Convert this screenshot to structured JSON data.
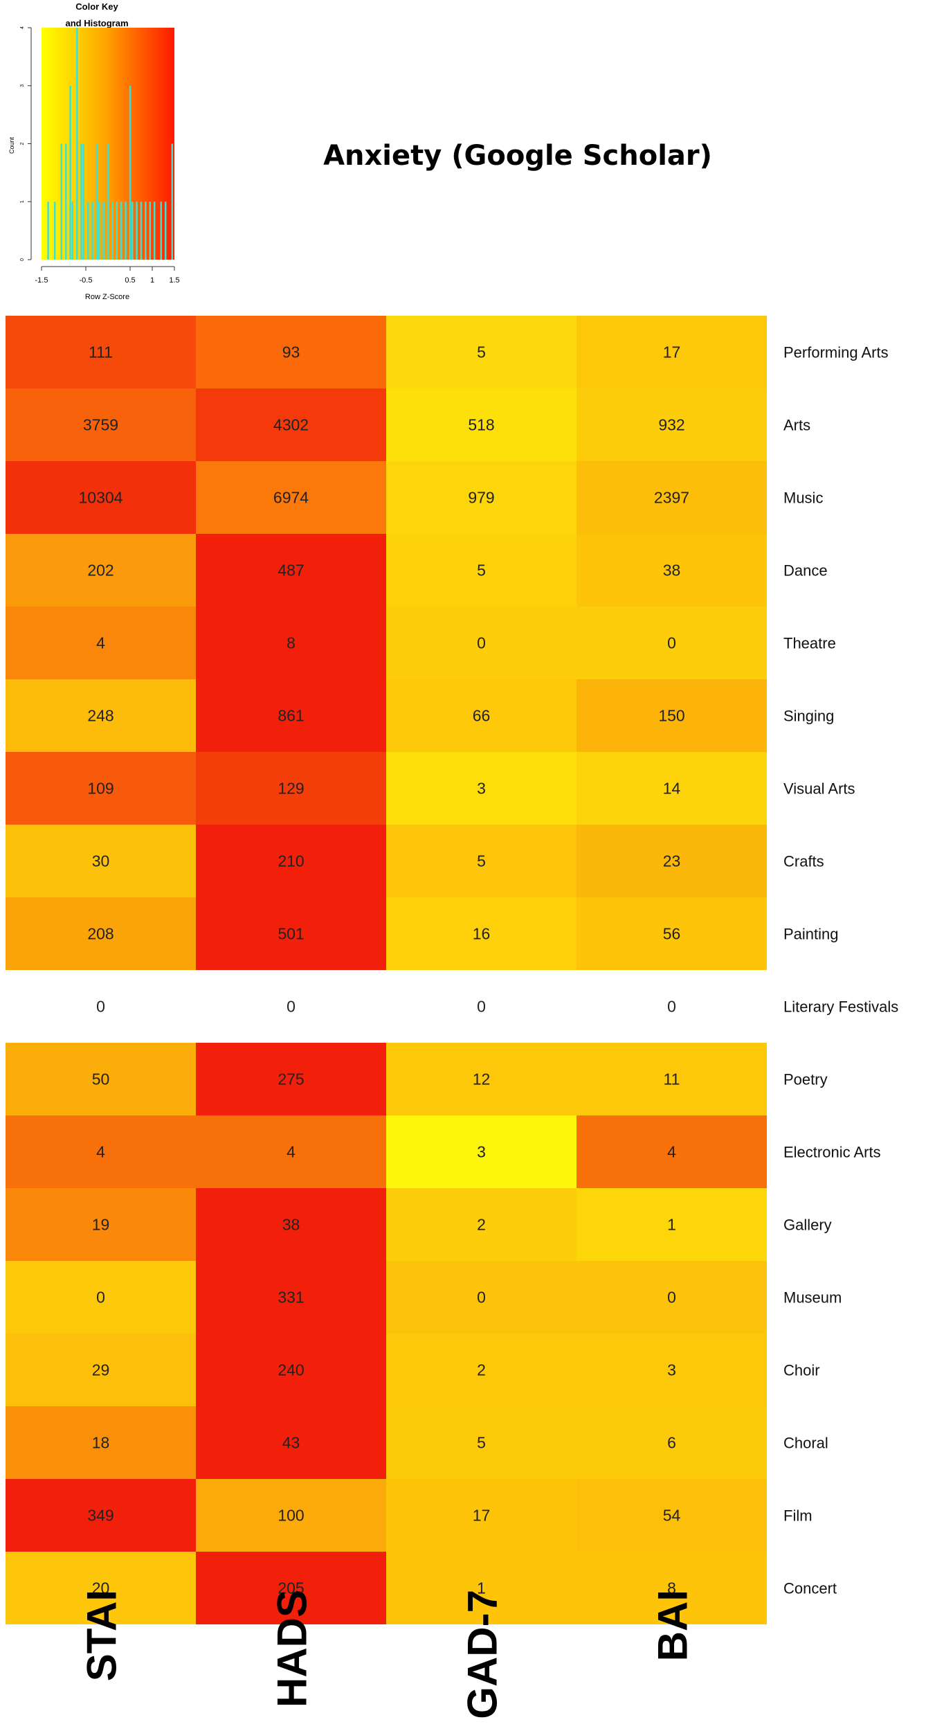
{
  "chart_data": {
    "type": "heatmap",
    "title": "Anxiety (Google Scholar)",
    "columns": [
      "STAI",
      "HADS",
      "GAD-7",
      "BAI"
    ],
    "rows": [
      {
        "label": "Performing Arts",
        "values": [
          111,
          93,
          5,
          17
        ],
        "colors": [
          "#f54a0a",
          "#fa6a0a",
          "#fdd80a",
          "#fdc80a"
        ]
      },
      {
        "label": "Arts",
        "values": [
          3759,
          4302,
          518,
          932
        ],
        "colors": [
          "#f8620a",
          "#f43a0a",
          "#fde00a",
          "#fdcc0a"
        ]
      },
      {
        "label": "Music",
        "values": [
          10304,
          6974,
          979,
          2397
        ],
        "colors": [
          "#f2300a",
          "#fb780a",
          "#fdd60a",
          "#fdbe0a"
        ]
      },
      {
        "label": "Dance",
        "values": [
          202,
          487,
          5,
          38
        ],
        "colors": [
          "#fb9a0a",
          "#f2200a",
          "#fdd20a",
          "#fdc40a"
        ]
      },
      {
        "label": "Theatre",
        "values": [
          4,
          8,
          0,
          0
        ],
        "colors": [
          "#fa860a",
          "#f2200a",
          "#fdcc0a",
          "#fdcc0a"
        ]
      },
      {
        "label": "Singing",
        "values": [
          248,
          861,
          66,
          150
        ],
        "colors": [
          "#fdbb0a",
          "#f2200a",
          "#fdc80a",
          "#fcb40a"
        ]
      },
      {
        "label": "Visual Arts",
        "values": [
          109,
          129,
          3,
          14
        ],
        "colors": [
          "#f65a0a",
          "#f43e0a",
          "#fdde0a",
          "#fdd40a"
        ]
      },
      {
        "label": "Crafts",
        "values": [
          30,
          210,
          5,
          23
        ],
        "colors": [
          "#fcc20a",
          "#f2200a",
          "#fdc60a",
          "#fcb80a"
        ]
      },
      {
        "label": "Painting",
        "values": [
          208,
          501,
          16,
          56
        ],
        "colors": [
          "#fba40a",
          "#f2200a",
          "#fdd00a",
          "#fdc40a"
        ]
      },
      {
        "label": "Literary Festivals",
        "values": [
          0,
          0,
          0,
          0
        ],
        "colors": [
          "#ffffff",
          "#ffffff",
          "#ffffff",
          "#ffffff"
        ]
      },
      {
        "label": "Poetry",
        "values": [
          50,
          275,
          12,
          11
        ],
        "colors": [
          "#fbae0a",
          "#f2200a",
          "#fdc80a",
          "#fdc80a"
        ]
      },
      {
        "label": "Electronic Arts",
        "values": [
          4,
          4,
          3,
          4
        ],
        "colors": [
          "#f8700a",
          "#f8700a",
          "#fdf50a",
          "#f8700a"
        ]
      },
      {
        "label": "Gallery",
        "values": [
          19,
          38,
          2,
          1
        ],
        "colors": [
          "#fa880a",
          "#f2200a",
          "#fdcc0a",
          "#fdd60a"
        ]
      },
      {
        "label": "Museum",
        "values": [
          0,
          331,
          0,
          0
        ],
        "colors": [
          "#fdc80a",
          "#f2200a",
          "#fdc20a",
          "#fdc20a"
        ]
      },
      {
        "label": "Choir",
        "values": [
          29,
          240,
          2,
          3
        ],
        "colors": [
          "#fdc00a",
          "#f2200a",
          "#fdc80a",
          "#fdc80a"
        ]
      },
      {
        "label": "Choral",
        "values": [
          18,
          43,
          5,
          6
        ],
        "colors": [
          "#fa900a",
          "#f2200a",
          "#fdca0a",
          "#fdca0a"
        ]
      },
      {
        "label": "Film",
        "values": [
          349,
          100,
          17,
          54
        ],
        "colors": [
          "#f2200a",
          "#fbaa0a",
          "#fdc40a",
          "#fdc00a"
        ]
      },
      {
        "label": "Concert",
        "values": [
          20,
          205,
          1,
          8
        ],
        "colors": [
          "#fdc60a",
          "#f2200a",
          "#fdc40a",
          "#fdc40a"
        ]
      }
    ],
    "color_key": {
      "title_line1": "Color Key",
      "title_line2": "and Histogram",
      "xlabel": "Row Z-Score",
      "ylabel": "Count",
      "xticks": [
        "-1.5",
        "-0.5",
        "0.5",
        "1",
        "1.5"
      ],
      "xtick_values": [
        -1.5,
        -0.5,
        0.5,
        1,
        1.5
      ],
      "yticks": [
        "0",
        "1",
        "2",
        "3",
        "4"
      ],
      "xlim": [
        -1.5,
        1.5
      ],
      "ylim": [
        0,
        4
      ],
      "gradient": [
        "#ffff00",
        "#ffd400",
        "#ff9f00",
        "#ff5a00",
        "#ff1a00"
      ],
      "histogram_color": "#40e0d0",
      "histogram_z": [
        -1.35,
        -1.2,
        -1.05,
        -0.95,
        -0.85,
        -0.8,
        -0.7,
        -0.6,
        -0.55,
        -0.45,
        -0.35,
        -0.25,
        -0.2,
        -0.1,
        0.0,
        0.1,
        0.2,
        0.3,
        0.4,
        0.5,
        0.55,
        0.65,
        0.75,
        0.85,
        0.95,
        1.05,
        1.2,
        1.3,
        1.45
      ],
      "histogram_counts": [
        1,
        1,
        2,
        2,
        3,
        1,
        4,
        2,
        2,
        1,
        1,
        2,
        1,
        1,
        2,
        1,
        1,
        1,
        1,
        3,
        1,
        1,
        1,
        1,
        1,
        1,
        1,
        1,
        2
      ]
    }
  }
}
